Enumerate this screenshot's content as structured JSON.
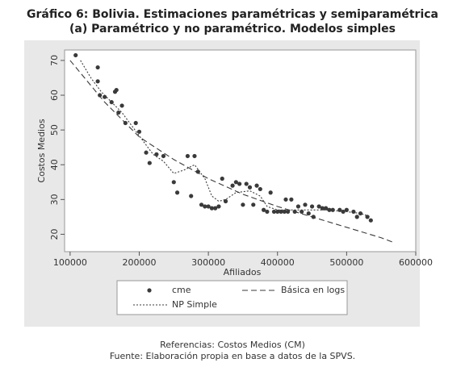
{
  "chart_data": {
    "type": "scatter",
    "title": "Gráfico  6: Bolivia. Estimaciones paramétricas y semiparamétrica",
    "subtitle": "(a) Paramétrico y no paramétrico. Modelos simples",
    "x_label": "Afiliados",
    "y_label": "Costos Medios",
    "xlim": [
      92000,
      600000
    ],
    "ylim": [
      15,
      73
    ],
    "xticks": [
      100000,
      200000,
      300000,
      400000,
      500000,
      600000
    ],
    "yticks": [
      20,
      30,
      40,
      50,
      60,
      70
    ],
    "series": [
      {
        "name": "cme",
        "color": "#3a3a3a",
        "style": "markers",
        "x": [
          108000,
          140000,
          140000,
          143000,
          150000,
          160000,
          165000,
          167000,
          170000,
          175000,
          180000,
          195000,
          200000,
          210000,
          215000,
          225000,
          235000,
          250000,
          255000,
          270000,
          275000,
          280000,
          285000,
          290000,
          295000,
          300000,
          305000,
          310000,
          315000,
          320000,
          325000,
          335000,
          340000,
          345000,
          350000,
          355000,
          360000,
          365000,
          370000,
          375000,
          380000,
          385000,
          390000,
          395000,
          400000,
          405000,
          410000,
          412000,
          415000,
          420000,
          425000,
          430000,
          435000,
          440000,
          445000,
          450000,
          452000,
          460000,
          465000,
          470000,
          475000,
          480000,
          490000,
          495000,
          500000,
          510000,
          515000,
          520000,
          530000,
          535000
        ],
        "values": [
          71.5,
          68,
          64,
          60,
          59.5,
          58,
          61,
          61.5,
          55,
          57,
          52,
          52,
          49.5,
          43.5,
          40.5,
          43,
          42.5,
          35,
          32,
          42.5,
          31,
          42.5,
          38,
          28.5,
          28,
          28,
          27.5,
          27.5,
          28,
          36,
          29.5,
          34,
          35,
          34.5,
          28.5,
          34.5,
          33.5,
          28.5,
          34,
          33,
          27,
          26.5,
          32,
          26.5,
          26.5,
          26.5,
          26.5,
          30,
          26.5,
          30,
          26.5,
          28,
          26.5,
          28.5,
          26,
          28,
          25,
          28,
          27.5,
          27.5,
          27,
          27,
          27,
          26.5,
          27,
          26.5,
          25,
          26,
          25,
          24
        ]
      },
      {
        "name": "Básica en logs",
        "color": "#3a3a3a",
        "style": "dashed",
        "x": [
          100000,
          150000,
          200000,
          250000,
          300000,
          350000,
          400000,
          450000,
          500000,
          550000,
          570000
        ],
        "values": [
          70,
          58,
          48,
          41.5,
          36,
          31.5,
          28,
          25,
          22,
          19,
          17.5
        ]
      },
      {
        "name": "NP Simple",
        "color": "#3a3a3a",
        "style": "dotted",
        "x": [
          115000,
          130000,
          145000,
          160000,
          175000,
          190000,
          205000,
          220000,
          235000,
          250000,
          265000,
          280000,
          295000,
          305000,
          315000,
          325000,
          340000,
          360000,
          375000,
          385000,
          400000,
          430000,
          450000,
          470000,
          500000,
          520000,
          535000
        ],
        "values": [
          70,
          65,
          61,
          58,
          55,
          51,
          47,
          43,
          41,
          37.5,
          38.5,
          40,
          36,
          31,
          29.5,
          30,
          32,
          32.5,
          31,
          28,
          27,
          27,
          27,
          27,
          26.5,
          26,
          25
        ]
      }
    ],
    "references": "Referencias: Costos Medios (CM)",
    "source": "Fuente: Elaboración propia en base a datos de la SPVS."
  }
}
